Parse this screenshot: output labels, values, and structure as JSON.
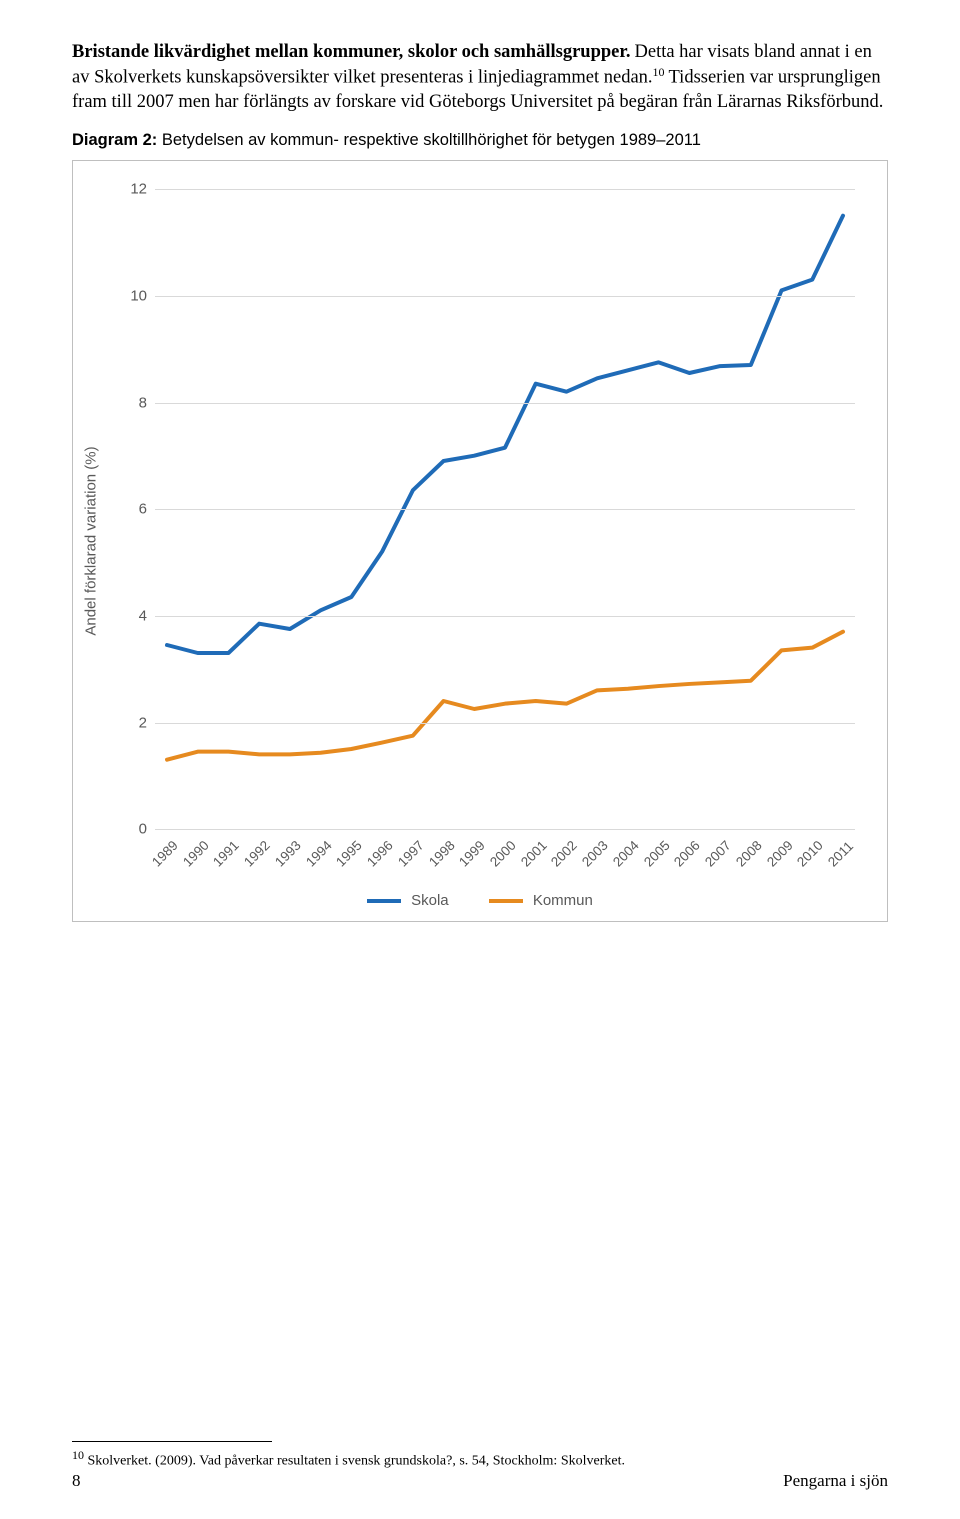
{
  "heading": "Bristande likvärdighet mellan kommuner, skolor och samhällsgrupper.",
  "para1_part1": " Detta har visats bland annat i en av Skolverkets kunskapsöversikter vilket presenteras i linjediagrammet nedan.",
  "para1_sup": "10",
  "para1_part2": " Tidsserien var ursprungligen fram till 2007 men har förlängts av forskare vid Göteborgs Universitet på begäran från Lärarnas Riksförbund.",
  "caption_prefix": "Diagram 2: ",
  "caption_text": "Betydelsen av kommun- respektive skoltillhörighet för betygen 1989–2011",
  "chart": {
    "y_label": "Andel förklarad variation (%)",
    "y_ticks": [
      0,
      2,
      4,
      6,
      8,
      10,
      12
    ],
    "ymin": 0,
    "ymax": 12,
    "x_labels": [
      "1989",
      "1990",
      "1991",
      "1992",
      "1993",
      "1994",
      "1995",
      "1996",
      "1997",
      "1998",
      "1999",
      "2000",
      "2001",
      "2002",
      "2003",
      "2004",
      "2005",
      "2006",
      "2007",
      "2008",
      "2009",
      "2010",
      "2011"
    ],
    "series": [
      {
        "name": "Skola",
        "color": "#1f6bb7",
        "width": 4,
        "values": [
          3.45,
          3.3,
          3.3,
          3.85,
          3.75,
          4.1,
          4.35,
          5.2,
          6.35,
          6.9,
          7.0,
          7.15,
          8.35,
          8.2,
          8.45,
          8.6,
          8.75,
          8.55,
          8.68,
          8.7,
          10.1,
          10.3,
          11.5
        ]
      },
      {
        "name": "Kommun",
        "color": "#e68a1f",
        "width": 4,
        "values": [
          1.3,
          1.45,
          1.45,
          1.4,
          1.4,
          1.43,
          1.5,
          1.62,
          1.75,
          2.4,
          2.25,
          2.35,
          2.4,
          2.35,
          2.6,
          2.63,
          2.68,
          2.72,
          2.75,
          2.78,
          3.35,
          3.4,
          3.7
        ]
      }
    ],
    "grid_color": "#d9d9d9",
    "border_color": "#bfbfbf",
    "bg": "#ffffff"
  },
  "legend": {
    "skola": "Skola",
    "kommun": "Kommun"
  },
  "footnote_sup": "10",
  "footnote_text": " Skolverket. (2009). Vad påverkar resultaten i svensk grundskola?, s. 54, Stockholm: Skolverket.",
  "page_number": "8",
  "running_title": "Pengarna i sjön"
}
